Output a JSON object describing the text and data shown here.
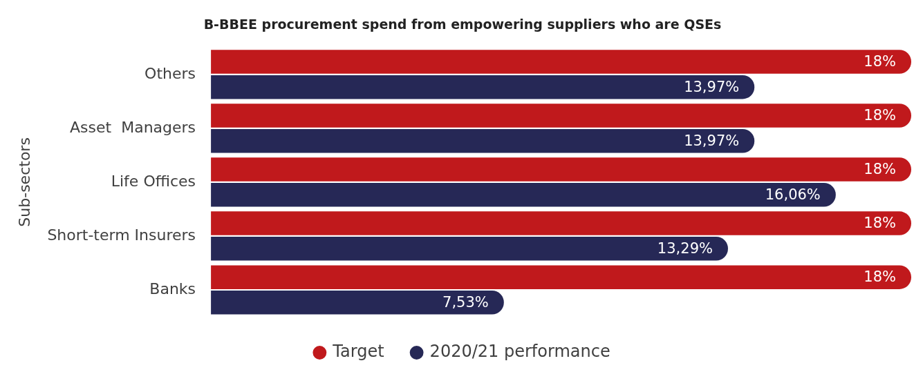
{
  "chart_data": {
    "type": "bar",
    "orientation": "horizontal",
    "title": "B-BBEE procurement spend from empowering suppliers who are QSEs",
    "ylabel": "Sub-sectors",
    "categories": [
      "Others",
      "Asset  Managers",
      "Life Offices",
      "Short-term Insurers",
      "Banks"
    ],
    "legend": "bottom",
    "series": [
      {
        "name": "Target",
        "color": "#c0191c",
        "values": [
          18,
          18,
          18,
          18,
          18
        ],
        "value_labels": [
          "18%",
          "18%",
          "18%",
          "18%",
          "18%"
        ]
      },
      {
        "name": "2020/21 performance",
        "color": "#262856",
        "values": [
          13.97,
          13.97,
          16.06,
          13.29,
          7.53
        ],
        "value_labels": [
          "13,97%",
          "13,97%",
          "16,06%",
          "13,29%",
          "7,53%"
        ]
      }
    ]
  }
}
